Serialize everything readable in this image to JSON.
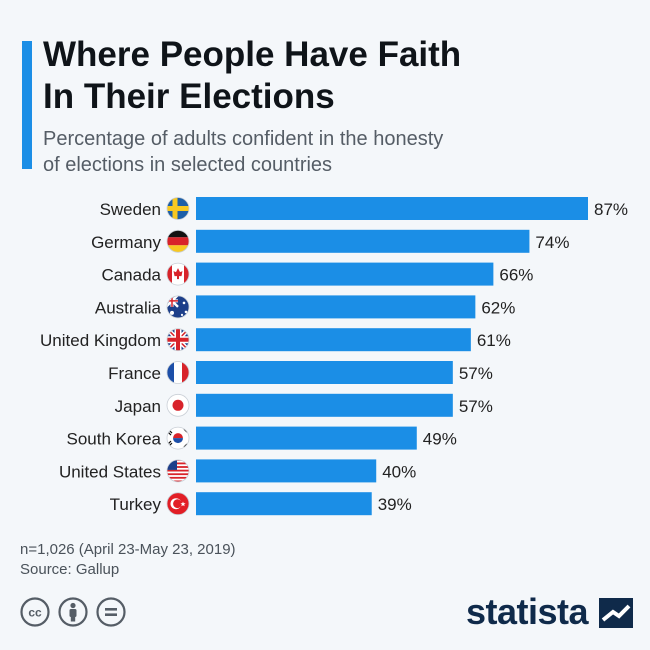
{
  "header": {
    "title_line1": "Where People Have Faith",
    "title_line2": "In Their Elections",
    "subtitle_line1": "Percentage of adults confident in the honesty",
    "subtitle_line2": "of elections in selected countries"
  },
  "chart_data": {
    "type": "bar",
    "orientation": "horizontal",
    "categories": [
      "Sweden",
      "Germany",
      "Canada",
      "Australia",
      "United Kingdom",
      "France",
      "Japan",
      "South Korea",
      "United States",
      "Turkey"
    ],
    "values": [
      87,
      74,
      66,
      62,
      61,
      57,
      57,
      49,
      40,
      39
    ],
    "value_labels": [
      "87%",
      "74%",
      "66%",
      "62%",
      "61%",
      "57%",
      "57%",
      "49%",
      "40%",
      "39%"
    ],
    "flags": [
      "sweden-flag-icon",
      "germany-flag-icon",
      "canada-flag-icon",
      "australia-flag-icon",
      "united-kingdom-flag-icon",
      "france-flag-icon",
      "japan-flag-icon",
      "south-korea-flag-icon",
      "united-states-flag-icon",
      "turkey-flag-icon"
    ],
    "xlim": [
      0,
      87
    ],
    "bar_color": "#1b8ee6",
    "grid": false,
    "legend": "none"
  },
  "footer": {
    "note": "n=1,026 (April 23-May 23, 2019)",
    "source": "Source: Gallup",
    "license_icons": [
      "creative-commons-icon",
      "attribution-icon",
      "no-derivatives-icon"
    ],
    "brand": "statista"
  }
}
